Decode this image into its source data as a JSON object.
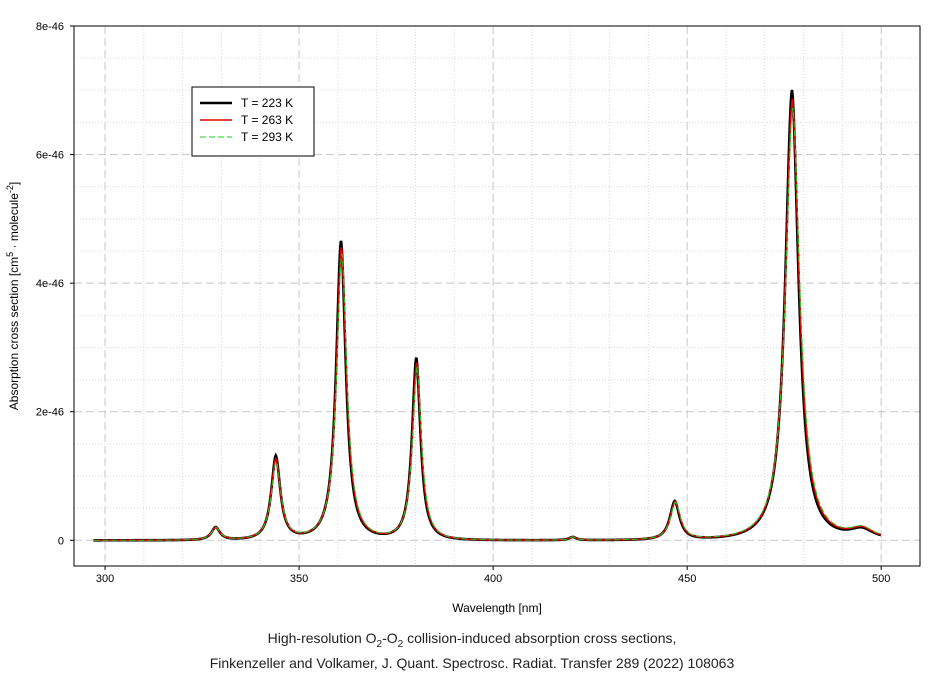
{
  "chart_data": {
    "type": "line",
    "xlabel": "Wavelength [nm]",
    "ylabel": "Absorption cross section [cm5 · molecule-2]",
    "ylabel_parts": {
      "pre": "Absorption cross section [cm",
      "sup1": "5",
      "mid": " · molecule",
      "sup2": "-2",
      "post": "]"
    },
    "xlim": [
      292,
      510
    ],
    "ylim": [
      -4e-47,
      8e-46
    ],
    "x_ticks": [
      300,
      350,
      400,
      450,
      500
    ],
    "y_ticks": [
      {
        "value": 0,
        "label": "0"
      },
      {
        "value": 2e-46,
        "label": "2e-46"
      },
      {
        "value": 4e-46,
        "label": "4e-46"
      },
      {
        "value": 6e-46,
        "label": "6e-46"
      },
      {
        "value": 8e-46,
        "label": "8e-46"
      }
    ],
    "grid": true,
    "legend_position": "top-left",
    "series": [
      {
        "name": "T = 223 K",
        "color": "#000000",
        "style": "solid-thick",
        "bands": [
          {
            "center": 328.5,
            "peak": 2e-47,
            "width": 1.4
          },
          {
            "center": 344.0,
            "peak": 1.3e-46,
            "width": 1.5
          },
          {
            "center": 360.8,
            "peak": 4.65e-46,
            "width": 1.6
          },
          {
            "center": 380.2,
            "peak": 2.83e-46,
            "width": 1.4
          },
          {
            "center": 420.5,
            "peak": 5e-48,
            "width": 1.2
          },
          {
            "center": 446.8,
            "peak": 6e-47,
            "width": 1.6
          },
          {
            "center": 477.0,
            "peak": 7e-46,
            "width": 2.2
          },
          {
            "center": 495.0,
            "peak": 1.5e-47,
            "width": 4.0
          }
        ]
      },
      {
        "name": "T = 263 K",
        "color": "#e00000",
        "style": "solid",
        "bands": [
          {
            "center": 328.5,
            "peak": 1.95e-47,
            "width": 1.45
          },
          {
            "center": 344.0,
            "peak": 1.25e-46,
            "width": 1.55
          },
          {
            "center": 360.9,
            "peak": 4.55e-46,
            "width": 1.65
          },
          {
            "center": 380.3,
            "peak": 2.75e-46,
            "width": 1.45
          },
          {
            "center": 420.5,
            "peak": 5e-48,
            "width": 1.2
          },
          {
            "center": 446.9,
            "peak": 5.9e-47,
            "width": 1.65
          },
          {
            "center": 477.1,
            "peak": 6.86e-46,
            "width": 2.3
          },
          {
            "center": 495.0,
            "peak": 1.6e-47,
            "width": 4.0
          }
        ]
      },
      {
        "name": "T = 293 K",
        "color": "#22cc22",
        "style": "dashed",
        "bands": [
          {
            "center": 328.6,
            "peak": 1.9e-47,
            "width": 1.5
          },
          {
            "center": 344.1,
            "peak": 1.21e-46,
            "width": 1.6
          },
          {
            "center": 361.0,
            "peak": 4.45e-46,
            "width": 1.7
          },
          {
            "center": 380.4,
            "peak": 2.68e-46,
            "width": 1.5
          },
          {
            "center": 420.6,
            "peak": 5e-48,
            "width": 1.2
          },
          {
            "center": 447.0,
            "peak": 5.8e-47,
            "width": 1.7
          },
          {
            "center": 477.2,
            "peak": 6.72e-46,
            "width": 2.4
          },
          {
            "center": 495.1,
            "peak": 1.65e-47,
            "width": 4.0
          }
        ]
      }
    ],
    "x_range_data": [
      297,
      500
    ]
  },
  "caption": {
    "line1_pre": "High-resolution O",
    "line1_sub1": "2",
    "line1_mid": "-O",
    "line1_sub2": "2",
    "line1_post": " collision-induced absorption cross sections,",
    "line2": "Finkenzeller and Volkamer, J. Quant. Spectrosc. Radiat. Transfer 289 (2022) 108063"
  }
}
